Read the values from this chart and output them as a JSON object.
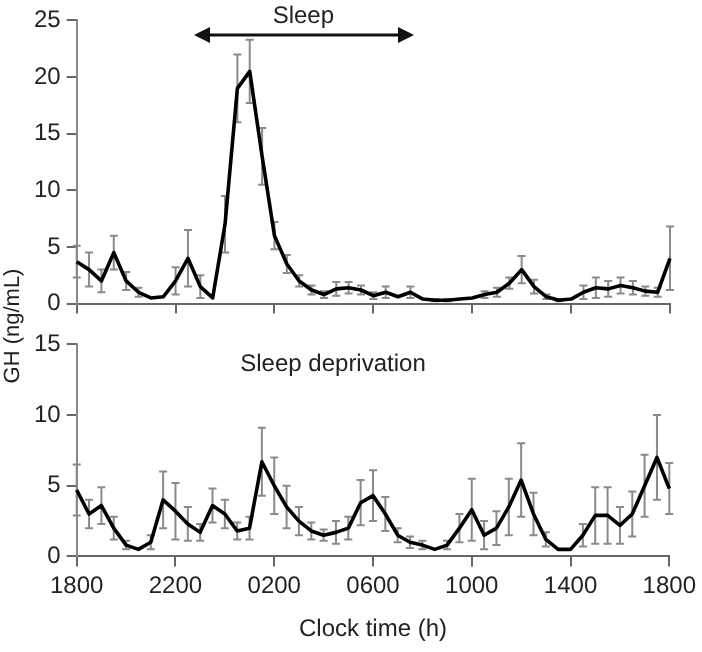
{
  "chart_data": [
    {
      "type": "line",
      "ylabel": "GH (ng/mL)",
      "annotations": [
        "Sleep"
      ],
      "categories": [
        "1800",
        null,
        null,
        null,
        null,
        null,
        null,
        null,
        "2200",
        null,
        null,
        null,
        null,
        null,
        null,
        null,
        "0200",
        null,
        null,
        null,
        null,
        null,
        null,
        null,
        "0600",
        null,
        null,
        null,
        null,
        null,
        null,
        null,
        "1000",
        null,
        null,
        null,
        null,
        null,
        null,
        null,
        "1400",
        null,
        null,
        null,
        null,
        null,
        null,
        null,
        "1800"
      ],
      "values": [
        3.7,
        3.0,
        2.0,
        4.5,
        2.0,
        1.0,
        0.5,
        0.6,
        2.0,
        4.0,
        1.5,
        0.5,
        7.0,
        19.0,
        20.5,
        13.0,
        6.0,
        3.5,
        2.0,
        1.2,
        0.8,
        1.3,
        1.4,
        1.2,
        0.7,
        1.0,
        0.6,
        1.0,
        0.4,
        0.3,
        0.3,
        0.4,
        0.5,
        0.8,
        1.0,
        1.8,
        3.0,
        1.5,
        0.6,
        0.3,
        0.4,
        1.0,
        1.4,
        1.3,
        1.6,
        1.4,
        1.1,
        1.0,
        4.0
      ],
      "errors": [
        1.4,
        1.5,
        1.0,
        1.5,
        0.8,
        0.4,
        null,
        null,
        1.2,
        2.5,
        1.0,
        null,
        2.5,
        3.0,
        2.8,
        2.5,
        1.2,
        0.8,
        0.5,
        0.4,
        0.3,
        0.6,
        0.5,
        0.4,
        0.3,
        0.5,
        null,
        0.5,
        null,
        0.1,
        0.1,
        null,
        null,
        0.3,
        0.4,
        0.5,
        1.2,
        0.6,
        0.2,
        0.1,
        null,
        0.6,
        0.9,
        0.7,
        0.7,
        0.6,
        0.4,
        0.4,
        2.8
      ],
      "color": "#000000",
      "ylim": [
        0,
        25
      ],
      "yticks": [
        0,
        5,
        10,
        15,
        20,
        25
      ],
      "tick_labels": "y",
      "grid": false,
      "legend": false,
      "marker": "none",
      "line_style": "solid"
    },
    {
      "type": "line",
      "xlabel": "Clock time (h)",
      "annotations": [
        "Sleep deprivation"
      ],
      "categories": [
        "1800",
        null,
        null,
        null,
        null,
        null,
        null,
        null,
        "2200",
        null,
        null,
        null,
        null,
        null,
        null,
        null,
        "0200",
        null,
        null,
        null,
        null,
        null,
        null,
        null,
        "0600",
        null,
        null,
        null,
        null,
        null,
        null,
        null,
        "1000",
        null,
        null,
        null,
        null,
        null,
        null,
        null,
        "1400",
        null,
        null,
        null,
        null,
        null,
        null,
        null,
        "1800"
      ],
      "values": [
        4.7,
        3.0,
        3.6,
        2.0,
        0.8,
        0.5,
        1.0,
        4.0,
        3.2,
        2.3,
        1.7,
        3.6,
        3.0,
        1.8,
        2.0,
        6.7,
        5.0,
        3.5,
        2.5,
        1.8,
        1.5,
        1.7,
        2.0,
        3.8,
        4.3,
        3.0,
        1.5,
        1.0,
        0.8,
        0.5,
        0.8,
        2.0,
        3.3,
        1.5,
        2.0,
        3.5,
        5.4,
        3.0,
        1.2,
        0.5,
        0.5,
        1.5,
        2.9,
        2.9,
        2.2,
        3.0,
        5.0,
        7.0,
        4.8
      ],
      "errors": [
        1.8,
        1.0,
        1.3,
        0.8,
        0.3,
        null,
        0.5,
        2.0,
        2.0,
        1.2,
        0.6,
        1.2,
        1.0,
        0.6,
        0.8,
        2.4,
        2.0,
        1.5,
        1.0,
        0.6,
        0.4,
        0.8,
        0.8,
        1.6,
        1.8,
        1.2,
        0.5,
        0.4,
        0.3,
        null,
        0.3,
        1.0,
        2.2,
        1.0,
        1.2,
        2.0,
        2.6,
        1.5,
        0.5,
        null,
        null,
        0.8,
        2.0,
        2.0,
        1.3,
        1.6,
        2.2,
        3.0,
        1.8
      ],
      "color": "#000000",
      "ylim": [
        0,
        15
      ],
      "yticks": [
        0,
        5,
        10,
        15
      ],
      "grid": false,
      "legend": false,
      "marker": "none",
      "line_style": "solid"
    }
  ]
}
